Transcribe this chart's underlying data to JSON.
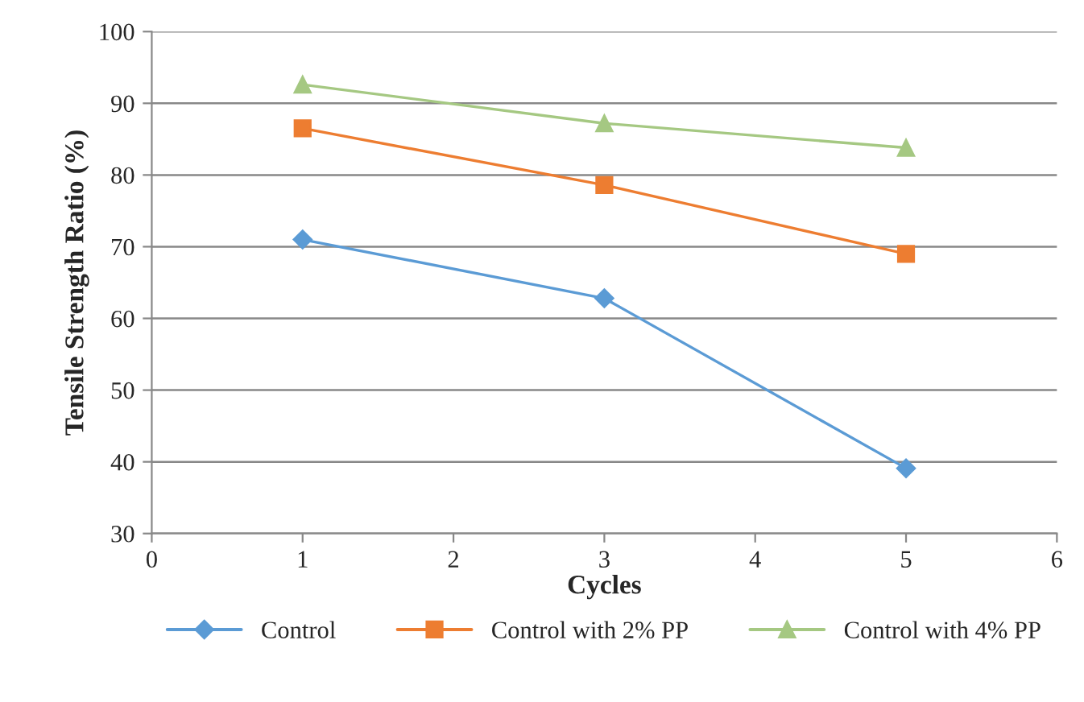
{
  "chart_data": {
    "type": "line",
    "xlabel": "Cycles",
    "ylabel": "Tensile Strength Ratio (%)",
    "x": [
      1,
      3,
      5
    ],
    "series": [
      {
        "name": "Control",
        "color": "#5b9bd5",
        "marker": "diamond",
        "values": [
          71,
          62.8,
          39.1
        ]
      },
      {
        "name": "Control with 2% PP",
        "color": "#ed7d31",
        "marker": "square",
        "values": [
          86.5,
          78.6,
          69
        ]
      },
      {
        "name": "Control with 4% PP",
        "color": "#a5c882",
        "marker": "triangle",
        "values": [
          92.6,
          87.2,
          83.8
        ]
      }
    ],
    "xlim": [
      0,
      6
    ],
    "xticks": [
      0,
      1,
      2,
      3,
      4,
      5,
      6
    ],
    "ylim": [
      30,
      100
    ],
    "yticks": [
      30,
      40,
      50,
      60,
      70,
      80,
      90,
      100
    ],
    "grid": "y",
    "legend": "bottom",
    "line_style": "solid"
  }
}
